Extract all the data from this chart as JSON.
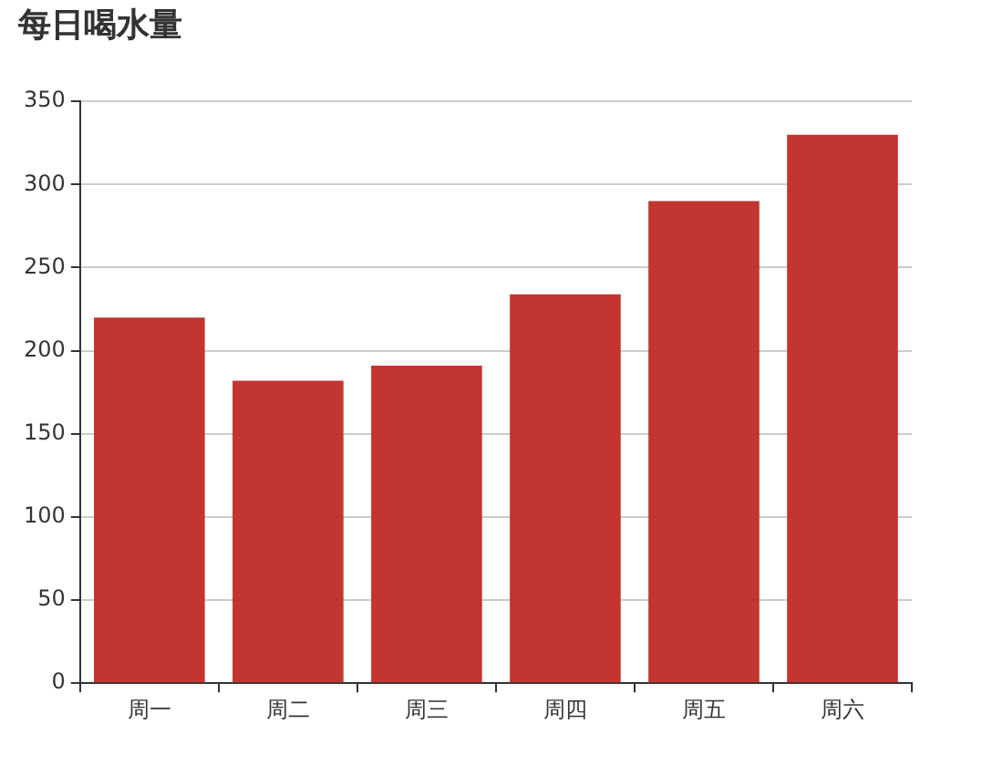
{
  "chart_data": {
    "type": "bar",
    "title": "每日喝水量",
    "categories": [
      "周一",
      "周二",
      "周三",
      "周四",
      "周五",
      "周六"
    ],
    "values": [
      220,
      182,
      191,
      234,
      290,
      330
    ],
    "color": "#c23531",
    "ylim": [
      0,
      350
    ],
    "yticks": [
      0,
      50,
      100,
      150,
      200,
      250,
      300,
      350
    ],
    "grid": "y"
  }
}
